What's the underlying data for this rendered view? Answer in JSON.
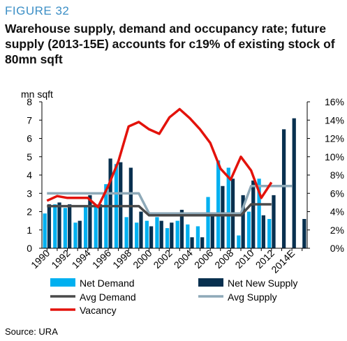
{
  "figure_label": "FIGURE 32",
  "title": "Warehouse supply, demand and occupancy rate; future supply (2013-15E) accounts for c19% of existing stock of 80mn sqft",
  "source": "Source: URA",
  "colors": {
    "net_demand": "#00b0f0",
    "net_new_supply": "#08304f",
    "avg_demand": "#4a4a4a",
    "avg_supply": "#8ea9b8",
    "vacancy": "#e3120b"
  },
  "chart_data": {
    "type": "bar",
    "title": "",
    "ylabel": "mn sqft",
    "y2label": "",
    "ylim": [
      0,
      8
    ],
    "y2lim": [
      0,
      0.16
    ],
    "yticks": [
      "0",
      "1",
      "2",
      "3",
      "4",
      "5",
      "6",
      "7",
      "8"
    ],
    "y2ticks": [
      "0%",
      "2%",
      "4%",
      "6%",
      "8%",
      "10%",
      "12%",
      "14%",
      "16%"
    ],
    "categories": [
      "1990",
      "1991",
      "1992",
      "1993",
      "1994",
      "1995",
      "1996",
      "1997",
      "1998",
      "1999",
      "2000",
      "2001",
      "2002",
      "2003",
      "2004",
      "2005",
      "2006",
      "2007",
      "2008",
      "2009",
      "2010",
      "2011",
      "2012",
      "2013",
      "2014E",
      "2015"
    ],
    "x_tick_labels": [
      "1990",
      "1992",
      "1994",
      "1996",
      "1998",
      "2000",
      "2002",
      "2004",
      "2006",
      "2008",
      "2010",
      "2012",
      "2014E"
    ],
    "series": [
      {
        "name": "Net Demand",
        "kind": "bar",
        "axis": "left",
        "values": [
          1.9,
          2.4,
          2.2,
          1.4,
          2.3,
          2.4,
          3.5,
          4.6,
          1.7,
          1.4,
          1.5,
          1.7,
          1.1,
          1.5,
          1.3,
          1.2,
          2.8,
          4.8,
          4.4,
          0.7,
          2.0,
          3.8,
          1.6,
          null,
          null,
          null
        ]
      },
      {
        "name": "Net New Supply",
        "kind": "bar",
        "axis": "left",
        "values": [
          2.4,
          2.5,
          2.4,
          1.5,
          2.9,
          2.4,
          4.9,
          4.7,
          4.4,
          2.0,
          1.2,
          1.5,
          1.4,
          2.1,
          0.6,
          0.6,
          1.9,
          3.4,
          3.8,
          2.9,
          3.7,
          1.8,
          2.9,
          6.5,
          7.1,
          1.6
        ]
      },
      {
        "name": "Avg Demand",
        "kind": "line",
        "axis": "left",
        "values": [
          2.3,
          2.3,
          2.3,
          2.3,
          2.3,
          2.3,
          2.3,
          2.3,
          2.3,
          2.3,
          1.8,
          1.8,
          1.8,
          1.8,
          1.8,
          1.8,
          1.8,
          1.8,
          1.8,
          1.8,
          2.4,
          2.4,
          2.4,
          null,
          null,
          null
        ]
      },
      {
        "name": "Avg Supply",
        "kind": "line",
        "axis": "left",
        "values": [
          3.0,
          3.0,
          3.0,
          3.0,
          3.0,
          3.0,
          3.0,
          3.0,
          3.0,
          3.0,
          1.9,
          1.9,
          1.9,
          1.9,
          1.9,
          1.9,
          1.9,
          1.9,
          1.9,
          1.9,
          3.4,
          3.4,
          3.4,
          3.4,
          3.4,
          null
        ]
      },
      {
        "name": "Vacancy",
        "kind": "line",
        "axis": "right",
        "values": [
          0.052,
          0.057,
          0.055,
          0.055,
          0.055,
          0.045,
          0.068,
          0.095,
          0.133,
          0.138,
          0.13,
          0.125,
          0.143,
          0.152,
          0.142,
          0.13,
          0.115,
          0.087,
          0.075,
          0.1,
          0.085,
          0.055,
          0.072,
          null,
          null,
          null
        ]
      }
    ],
    "legend": [
      {
        "label": "Net Demand",
        "marker": "box",
        "series": "net_demand"
      },
      {
        "label": "Net New Supply",
        "marker": "box",
        "series": "net_new_supply"
      },
      {
        "label": "Avg Demand",
        "marker": "line",
        "series": "avg_demand"
      },
      {
        "label": "Avg Supply",
        "marker": "line",
        "series": "avg_supply"
      },
      {
        "label": "Vacancy",
        "marker": "line",
        "series": "vacancy"
      }
    ],
    "legend_position": "bottom",
    "grid": false
  }
}
